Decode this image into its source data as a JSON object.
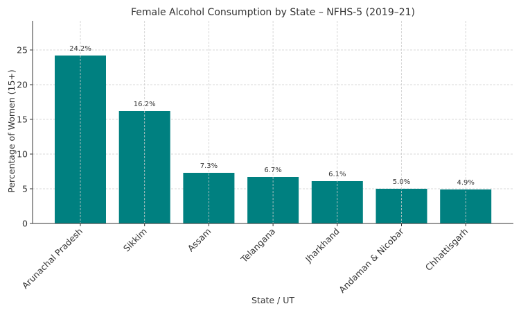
{
  "chart_data": {
    "type": "bar",
    "title": "Female Alcohol Consumption by State – NFHS-5 (2019–21)",
    "xlabel": "State / UT",
    "ylabel": "Percentage of Women (15+)",
    "categories": [
      "Arunachal Pradesh",
      "Sikkim",
      "Assam",
      "Telangana",
      "Jharkhand",
      "Andaman & Nicobar",
      "Chhattisgarh"
    ],
    "values": [
      24.2,
      16.2,
      7.3,
      6.7,
      6.1,
      5.0,
      4.9
    ],
    "value_labels": [
      "24.2%",
      "16.2%",
      "7.3%",
      "6.7%",
      "6.1%",
      "5.0%",
      "4.9%"
    ],
    "y_ticks": [
      0,
      5,
      10,
      15,
      20,
      25
    ],
    "y_tick_labels": [
      "0",
      "5",
      "10",
      "15",
      "20",
      "25"
    ],
    "ylim": [
      0,
      29.2
    ],
    "grid": true,
    "bar_color": "#008080"
  }
}
